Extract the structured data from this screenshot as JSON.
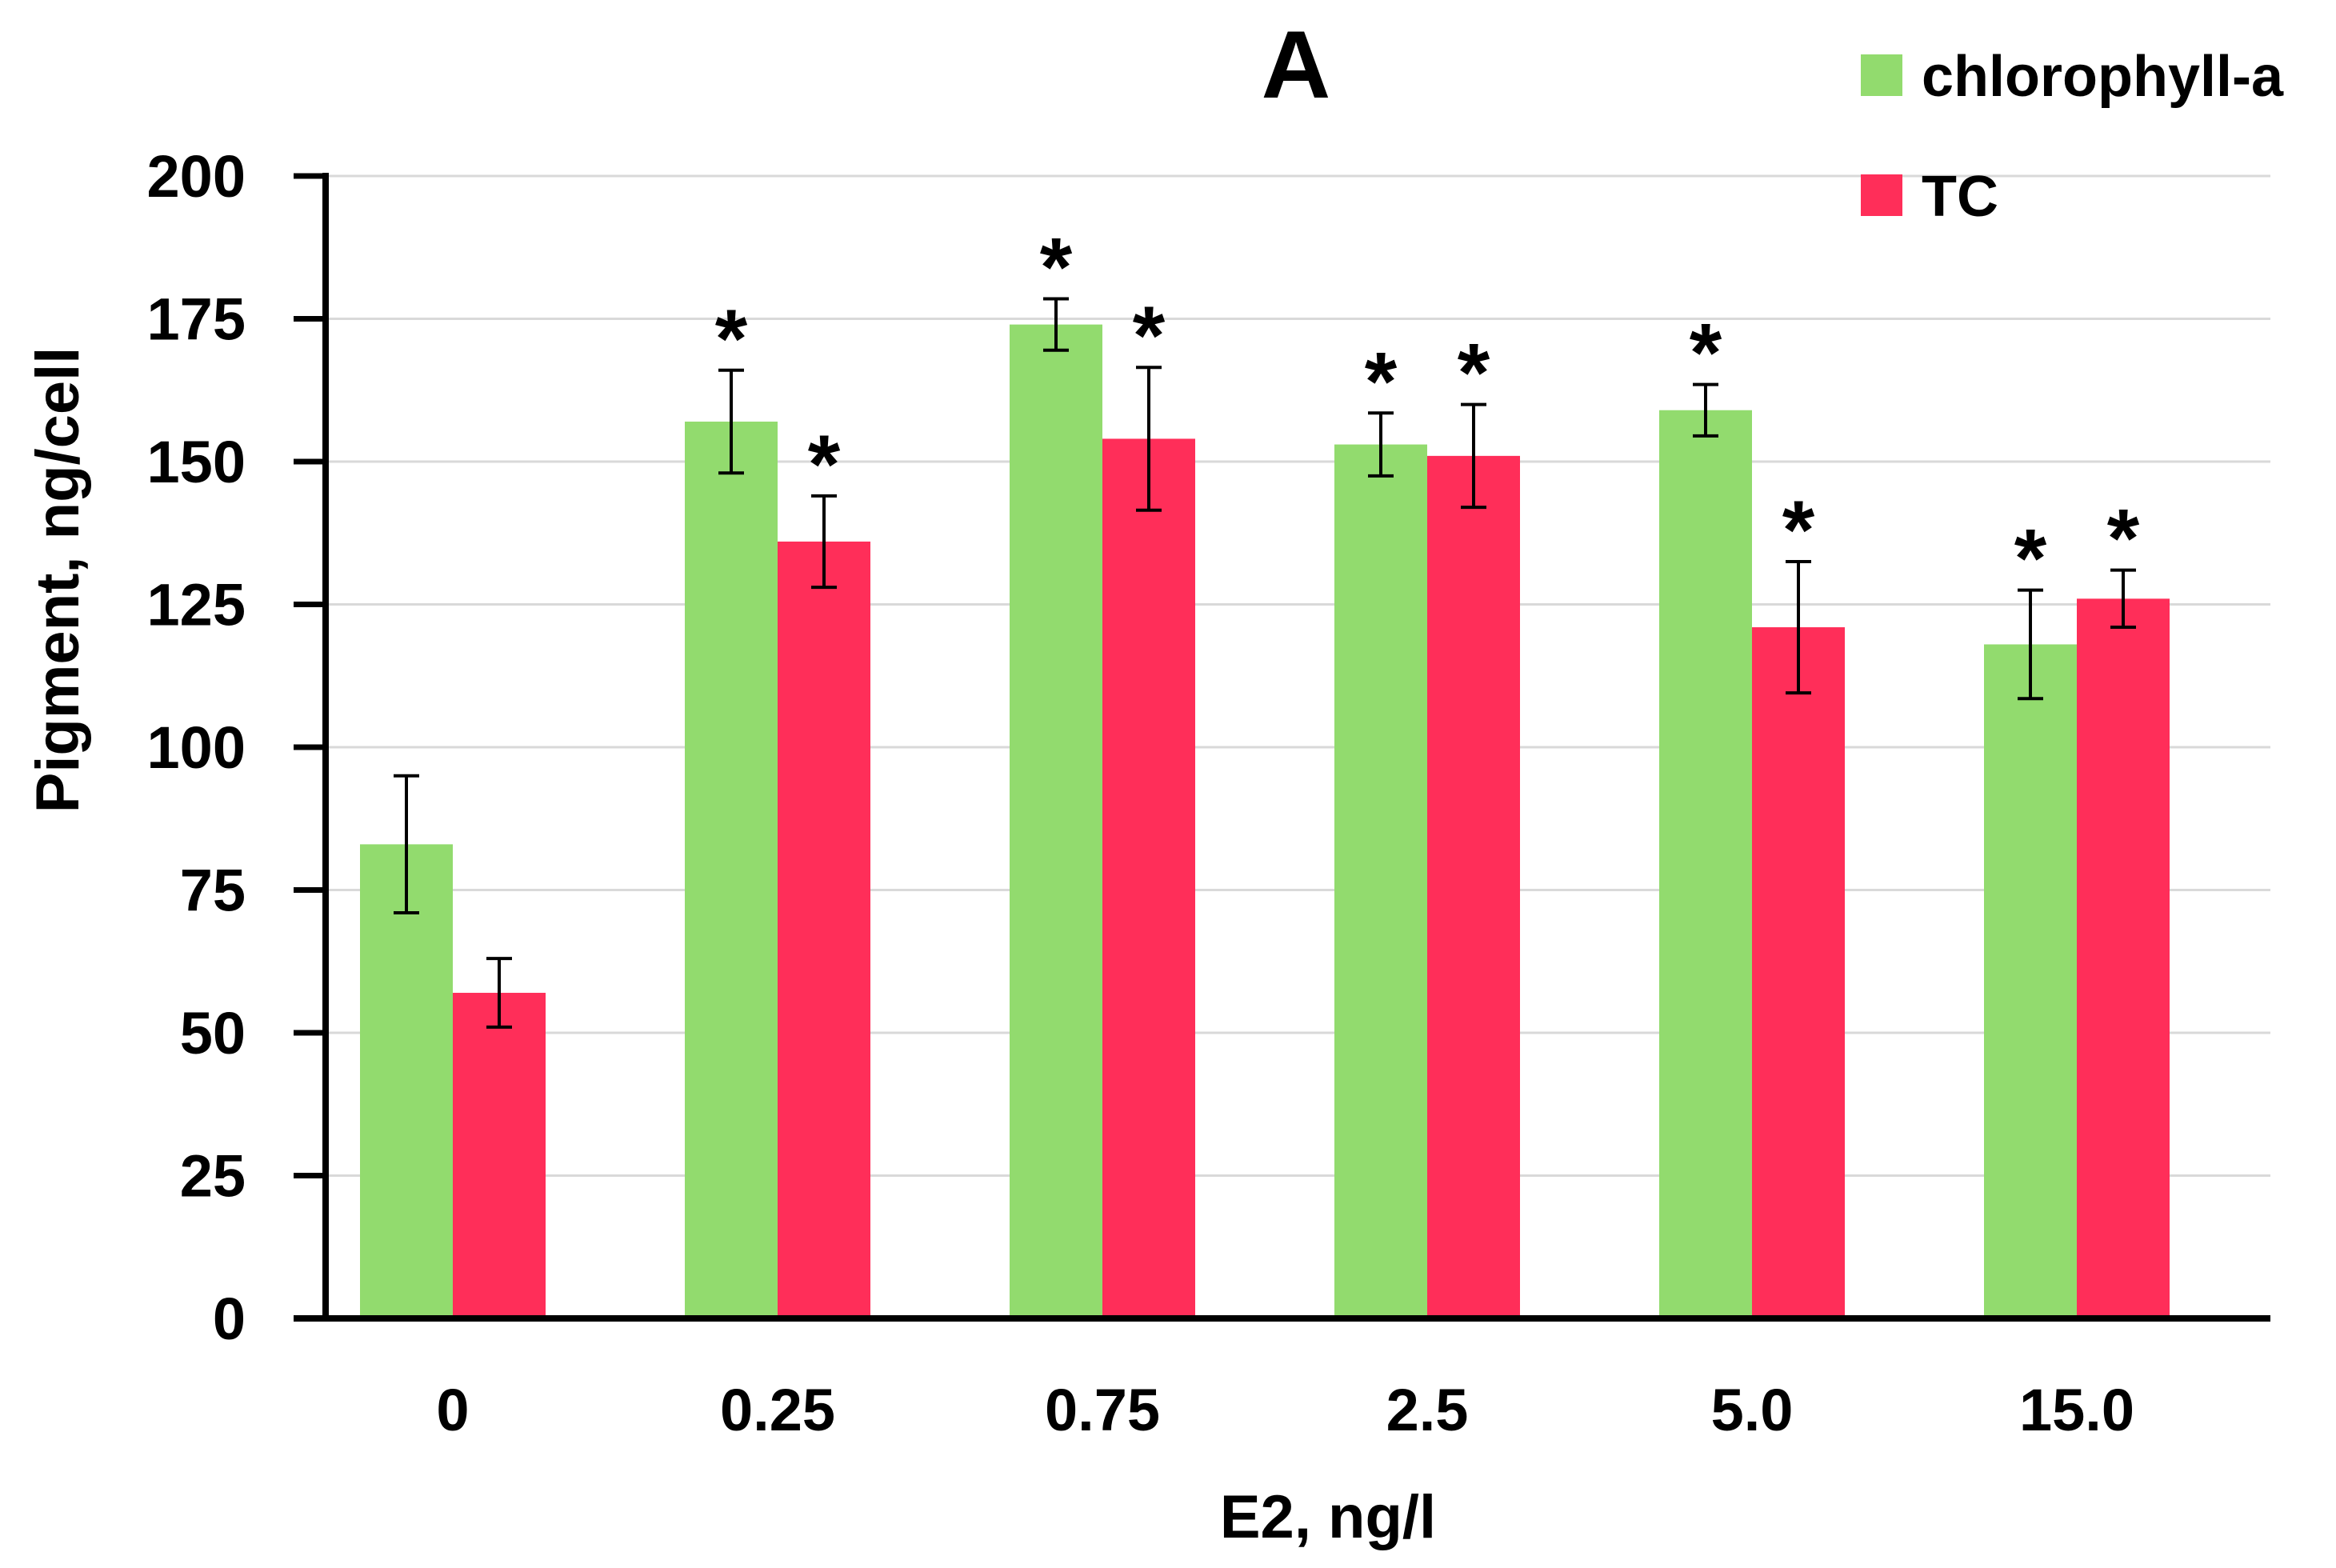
{
  "chart_data": {
    "type": "bar",
    "title": "A",
    "xlabel": "E2, ng/l",
    "ylabel": "Pigment, ng/cell",
    "ylim": [
      0,
      200
    ],
    "yticks": [
      0,
      25,
      50,
      75,
      100,
      125,
      150,
      175,
      200
    ],
    "grid": true,
    "legend_position": "top-right",
    "categories": [
      "0",
      "0.25",
      "0.75",
      "2.5",
      "5.0",
      "15.0"
    ],
    "series": [
      {
        "name": "chlorophyll-a",
        "color": "#92db6e",
        "values": [
          83,
          157,
          174,
          153,
          159,
          118
        ],
        "errors": [
          12,
          9,
          4.5,
          5.5,
          4.5,
          9.5
        ],
        "significant": [
          false,
          true,
          true,
          true,
          true,
          true
        ]
      },
      {
        "name": "TC",
        "color": "#ff2e59",
        "values": [
          57,
          136,
          154,
          151,
          121,
          126
        ],
        "errors": [
          6,
          8,
          12.5,
          9,
          11.5,
          5
        ],
        "significant": [
          false,
          true,
          true,
          true,
          true,
          true
        ]
      }
    ],
    "significance_marker": "*"
  }
}
